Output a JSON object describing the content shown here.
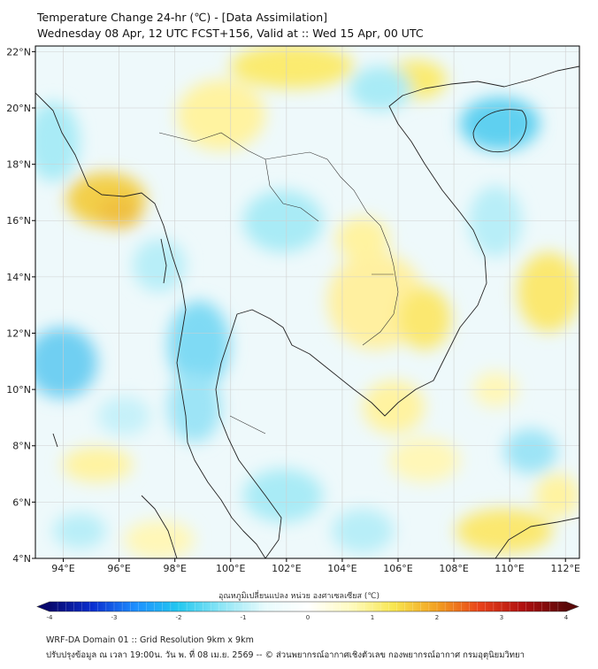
{
  "header": {
    "title": "Temperature Change 24-hr (℃) - [Data Assimilation]",
    "subtitle": "Wednesday 08 Apr, 12 UTC FCST+156, Valid at :: Wed 15 Apr, 00 UTC"
  },
  "map": {
    "lon_range": [
      93,
      112.5
    ],
    "lat_range": [
      4,
      22.2
    ],
    "lat_ticks": [
      {
        "value": 22,
        "label": "22°N"
      },
      {
        "value": 20,
        "label": "20°N"
      },
      {
        "value": 18,
        "label": "18°N"
      },
      {
        "value": 16,
        "label": "16°N"
      },
      {
        "value": 14,
        "label": "14°N"
      },
      {
        "value": 12,
        "label": "12°N"
      },
      {
        "value": 10,
        "label": "10°N"
      },
      {
        "value": 8,
        "label": "8°N"
      },
      {
        "value": 6,
        "label": "6°N"
      },
      {
        "value": 4,
        "label": "4°N"
      }
    ],
    "lon_ticks": [
      {
        "value": 94,
        "label": "94°E"
      },
      {
        "value": 96,
        "label": "96°E"
      },
      {
        "value": 98,
        "label": "98°E"
      },
      {
        "value": 100,
        "label": "100°E"
      },
      {
        "value": 102,
        "label": "102°E"
      },
      {
        "value": 104,
        "label": "104°E"
      },
      {
        "value": 106,
        "label": "106°E"
      },
      {
        "value": 108,
        "label": "108°E"
      },
      {
        "value": 110,
        "label": "110°E"
      },
      {
        "value": 112,
        "label": "112°E"
      }
    ],
    "grid": true,
    "colors": {
      "warm_light": "#fffbc4",
      "warm": "#fbeb70",
      "warm_strong": "#f3cf4a",
      "cool_light": "#d7f6fb",
      "cool": "#a9ebf6",
      "cool_strong": "#5fd0f0",
      "coast": "#222222",
      "grid": "#cfcfcf"
    }
  },
  "colorbar": {
    "title": "อุณหภูมิเปลี่ยนแปลง หน่วย องศาเซลเซียส (℃)",
    "min": -4,
    "max": 4,
    "tick_labels": [
      "-4",
      "-3",
      "-2",
      "-1",
      "0",
      "1",
      "2",
      "3",
      "4"
    ],
    "stops": [
      "#08086e",
      "#0a2fd0",
      "#1e90ff",
      "#23c8ef",
      "#8ee6f6",
      "#e8fbfd",
      "#ffffff",
      "#fffbc0",
      "#f8e650",
      "#f2a020",
      "#e8421a",
      "#b01010",
      "#5a0808"
    ]
  },
  "footer": {
    "line1": "WRF-DA Domain 01 :: Grid Resolution 9km x 9km",
    "line2": "ปรับปรุงข้อมูล ณ เวลา 19:00น. วัน พ. ที่ 08 เม.ย. 2569 -- © ส่วนพยากรณ์อากาศเชิงตัวเลข กองพยากรณ์อากาศ กรมอุตุนิยมวิทยา"
  }
}
